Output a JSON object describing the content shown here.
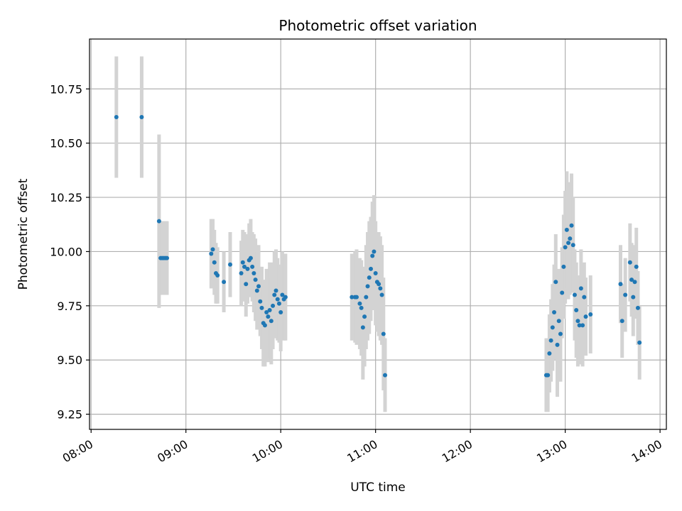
{
  "chart_data": {
    "type": "scatter",
    "title": "Photometric offset variation",
    "xlabel": "UTC time",
    "ylabel": "Photometric offset",
    "x_ticks": [
      "08:00",
      "09:00",
      "10:00",
      "11:00",
      "12:00",
      "13:00",
      "14:00"
    ],
    "xlim": [
      "07:59",
      "14:04"
    ],
    "y_ticks": [
      "9.25",
      "9.50",
      "9.75",
      "10.00",
      "10.25",
      "10.50",
      "10.75"
    ],
    "ylim": [
      9.18,
      10.98
    ],
    "grid": true,
    "colors": {
      "points": "#1f77b4",
      "errorbars": "#d3d3d3",
      "grid": "#b0b0b0"
    },
    "series": [
      {
        "x": [
          "08:16",
          "08:32",
          "08:43",
          "08:44",
          "08:45",
          "08:46",
          "08:47",
          "08:48",
          "09:16",
          "09:17",
          "09:18",
          "09:19",
          "09:20",
          "09:24",
          "09:28",
          "09:35",
          "09:36",
          "09:37",
          "09:38",
          "09:39",
          "09:40",
          "09:41",
          "09:42",
          "09:43",
          "09:44",
          "09:45",
          "09:46",
          "09:47",
          "09:48",
          "09:49",
          "09:50",
          "09:51",
          "09:52",
          "09:53",
          "09:54",
          "09:55",
          "09:56",
          "09:57",
          "09:58",
          "09:59",
          "10:00",
          "10:01",
          "10:02",
          "10:03",
          "10:45",
          "10:47",
          "10:48",
          "10:50",
          "10:51",
          "10:52",
          "10:53",
          "10:54",
          "10:55",
          "10:56",
          "10:57",
          "10:58",
          "10:59",
          "11:00",
          "11:01",
          "11:02",
          "11:03",
          "11:04",
          "11:05",
          "11:06",
          "12:48",
          "12:49",
          "12:50",
          "12:51",
          "12:52",
          "12:53",
          "12:54",
          "12:55",
          "12:56",
          "12:57",
          "12:58",
          "12:59",
          "13:00",
          "13:01",
          "13:02",
          "13:03",
          "13:04",
          "13:05",
          "13:06",
          "13:07",
          "13:08",
          "13:09",
          "13:10",
          "13:11",
          "13:12",
          "13:13",
          "13:16",
          "13:35",
          "13:36",
          "13:38",
          "13:41",
          "13:42",
          "13:43",
          "13:44",
          "13:45",
          "13:46",
          "13:47"
        ],
        "y": [
          10.62,
          10.62,
          10.14,
          9.97,
          9.97,
          9.97,
          9.97,
          9.97,
          9.99,
          10.01,
          9.95,
          9.9,
          9.89,
          9.86,
          9.94,
          9.9,
          9.95,
          9.93,
          9.85,
          9.92,
          9.96,
          9.97,
          9.93,
          9.9,
          9.87,
          9.82,
          9.84,
          9.77,
          9.74,
          9.67,
          9.66,
          9.72,
          9.7,
          9.73,
          9.68,
          9.75,
          9.8,
          9.82,
          9.78,
          9.76,
          9.72,
          9.8,
          9.78,
          9.79,
          9.79,
          9.79,
          9.79,
          9.76,
          9.74,
          9.65,
          9.7,
          9.79,
          9.84,
          9.88,
          9.92,
          9.98,
          10.0,
          9.9,
          9.86,
          9.85,
          9.83,
          9.8,
          9.62,
          9.43,
          9.43,
          9.43,
          9.53,
          9.59,
          9.65,
          9.72,
          9.86,
          9.57,
          9.68,
          9.62,
          9.81,
          9.93,
          10.02,
          10.1,
          10.04,
          10.06,
          10.12,
          10.03,
          9.8,
          9.73,
          9.68,
          9.66,
          9.83,
          9.66,
          9.79,
          9.7,
          9.71,
          9.85,
          9.68,
          9.8,
          9.95,
          9.87,
          9.79,
          9.86,
          9.93,
          9.74,
          9.58
        ]
      }
    ],
    "errorbar_half_height": [
      0.28,
      0.28,
      0.4,
      0.17,
      0.17,
      0.17,
      0.17,
      0.17,
      0.16,
      0.14,
      0.15,
      0.14,
      0.13,
      0.14,
      0.15,
      0.15,
      0.15,
      0.16,
      0.15,
      0.16,
      0.17,
      0.18,
      0.16,
      0.18,
      0.19,
      0.18,
      0.19,
      0.16,
      0.19,
      0.2,
      0.19,
      0.2,
      0.21,
      0.22,
      0.2,
      0.2,
      0.2,
      0.19,
      0.19,
      0.18,
      0.18,
      0.2,
      0.19,
      0.2,
      0.2,
      0.21,
      0.22,
      0.21,
      0.22,
      0.24,
      0.23,
      0.24,
      0.25,
      0.26,
      0.24,
      0.25,
      0.26,
      0.24,
      0.23,
      0.24,
      0.24,
      0.23,
      0.26,
      0.17,
      0.17,
      0.17,
      0.18,
      0.19,
      0.2,
      0.22,
      0.22,
      0.24,
      0.24,
      0.22,
      0.21,
      0.24,
      0.26,
      0.27,
      0.26,
      0.26,
      0.24,
      0.22,
      0.21,
      0.22,
      0.21,
      0.18,
      0.18,
      0.19,
      0.16,
      0.18,
      0.18,
      0.18,
      0.17,
      0.17,
      0.18,
      0.17,
      0.18,
      0.17,
      0.18,
      0.17,
      0.17
    ]
  }
}
